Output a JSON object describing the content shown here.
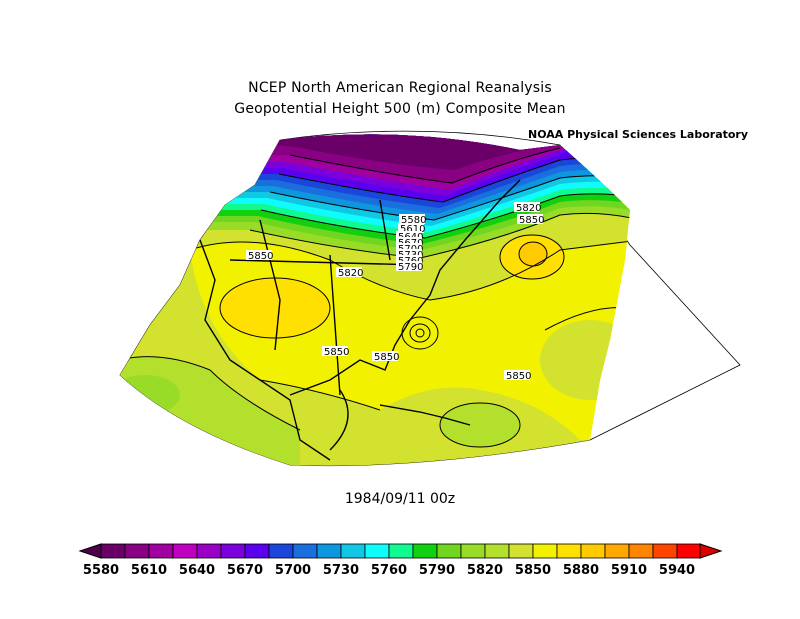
{
  "header": {
    "title_line1": "NCEP North American Regional Reanalysis",
    "title_line2": "Geopotential Height 500 (m) Composite Mean",
    "credit": "NOAA Physical Sciences Laboratory"
  },
  "footer": {
    "date": "1984/09/11 00z"
  },
  "contour_labels": [
    "5580",
    "5610",
    "5640",
    "5670",
    "5700",
    "5730",
    "5760",
    "5790",
    "5820",
    "5850",
    "5850",
    "5850",
    "5850",
    "5850",
    "5820"
  ],
  "colorbar": {
    "colors": [
      "#6a0067",
      "#8a0082",
      "#a0009f",
      "#c000c0",
      "#9a00c6",
      "#7b00dc",
      "#5a00ee",
      "#1a46dc",
      "#1a6ede",
      "#0e96de",
      "#10c8e6",
      "#10fbfb",
      "#10fa90",
      "#10d010",
      "#70d620",
      "#98dc28",
      "#b2e02c",
      "#d2e22e",
      "#f2f200",
      "#ffe000",
      "#ffca00",
      "#ffa800",
      "#ff8400",
      "#ff4400",
      "#ff0000"
    ],
    "left_arrow_color": "#4f004a",
    "right_arrow_color": "#dd0000",
    "tick_labels": [
      "5580",
      "5610",
      "5640",
      "5670",
      "5700",
      "5730",
      "5760",
      "5790",
      "5820",
      "5850",
      "5880",
      "5910",
      "5940"
    ]
  }
}
